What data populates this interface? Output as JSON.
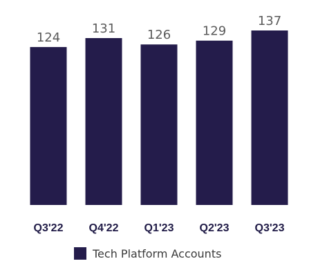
{
  "chart_data": {
    "type": "bar",
    "categories": [
      "Q3'22",
      "Q4'22",
      "Q1'23",
      "Q2'23",
      "Q3'23"
    ],
    "series": [
      {
        "name": "Tech Platform Accounts",
        "values": [
          124,
          131,
          126,
          129,
          137
        ],
        "color": "#241c4b"
      }
    ],
    "data_labels": [
      "124",
      "131",
      "126",
      "129",
      "137"
    ],
    "ylim": [
      0,
      137
    ],
    "grid": false,
    "legend_position": "bottom-center",
    "colors": {
      "bar": "#241c4b",
      "value_label": "#5a5a5a",
      "tick_label": "#1f1a46",
      "legend_text": "#3a3a3a"
    }
  }
}
